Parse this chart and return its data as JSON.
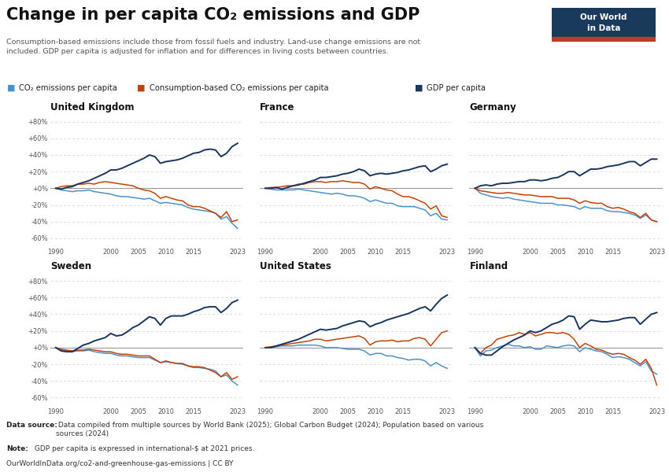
{
  "title": "Change in per capita CO₂ emissions and GDP",
  "subtitle": "Consumption-based emissions include those from fossil fuels and industry. Land-use change emissions are not\nincluded. GDP per capita is adjusted for inflation and for differences in living costs between countries.",
  "footer_datasource_bold": "Data source:",
  "footer_datasource_rest": " Data compiled from multiple sources by World Bank (2025); Global Carbon Budget (2024); Population based on various\nsources (2024)",
  "footer_note_bold": "Note:",
  "footer_note_rest": " GDP per capita is expressed in international-$ at 2021 prices.",
  "footer_url": "OurWorldInData.org/co2-and-greenhouse-gas-emissions | CC BY",
  "owid_box_color": "#1a3a5c",
  "owid_box_red": "#c0392b",
  "countries": [
    "United Kingdom",
    "France",
    "Germany",
    "Sweden",
    "United States",
    "Finland"
  ],
  "years": [
    1990,
    1991,
    1992,
    1993,
    1994,
    1995,
    1996,
    1997,
    1998,
    1999,
    2000,
    2001,
    2002,
    2003,
    2004,
    2005,
    2006,
    2007,
    2008,
    2009,
    2010,
    2011,
    2012,
    2013,
    2014,
    2015,
    2016,
    2017,
    2018,
    2019,
    2020,
    2021,
    2022,
    2023
  ],
  "data": {
    "United Kingdom": {
      "co2": [
        0,
        -2,
        -3,
        -4,
        -3,
        -3,
        -2,
        -4,
        -5,
        -6,
        -7,
        -9,
        -10,
        -10,
        -11,
        -12,
        -13,
        -12,
        -15,
        -18,
        -17,
        -18,
        -19,
        -20,
        -23,
        -25,
        -26,
        -27,
        -28,
        -30,
        -37,
        -34,
        -42,
        -48
      ],
      "consumption": [
        0,
        2,
        3,
        3,
        5,
        5,
        6,
        5,
        7,
        8,
        7,
        6,
        5,
        4,
        3,
        0,
        -2,
        -3,
        -6,
        -12,
        -10,
        -12,
        -14,
        -15,
        -20,
        -22,
        -22,
        -24,
        -27,
        -30,
        -35,
        -28,
        -40,
        -38
      ],
      "gdp": [
        0,
        -1,
        1,
        2,
        5,
        7,
        9,
        12,
        15,
        18,
        22,
        22,
        24,
        27,
        30,
        33,
        36,
        40,
        38,
        30,
        32,
        33,
        34,
        36,
        39,
        42,
        43,
        46,
        47,
        46,
        38,
        42,
        50,
        54
      ]
    },
    "France": {
      "co2": [
        0,
        -1,
        -2,
        -2,
        -2,
        -2,
        -1,
        -2,
        -3,
        -4,
        -5,
        -6,
        -7,
        -6,
        -7,
        -9,
        -9,
        -10,
        -12,
        -16,
        -14,
        -16,
        -18,
        -18,
        -21,
        -22,
        -22,
        -22,
        -24,
        -26,
        -33,
        -30,
        -37,
        -38
      ],
      "consumption": [
        0,
        1,
        1,
        2,
        3,
        3,
        5,
        5,
        7,
        8,
        8,
        7,
        8,
        8,
        9,
        8,
        7,
        7,
        5,
        -1,
        2,
        0,
        -2,
        -3,
        -7,
        -10,
        -10,
        -12,
        -15,
        -18,
        -25,
        -21,
        -33,
        -35
      ],
      "gdp": [
        0,
        0,
        1,
        -1,
        1,
        3,
        4,
        6,
        8,
        10,
        13,
        13,
        14,
        15,
        17,
        18,
        20,
        23,
        21,
        15,
        17,
        18,
        17,
        18,
        19,
        21,
        22,
        24,
        26,
        27,
        20,
        23,
        27,
        29
      ]
    },
    "Germany": {
      "co2": [
        0,
        -6,
        -8,
        -10,
        -11,
        -12,
        -11,
        -13,
        -14,
        -15,
        -16,
        -17,
        -18,
        -18,
        -18,
        -20,
        -20,
        -21,
        -22,
        -25,
        -22,
        -24,
        -24,
        -24,
        -27,
        -28,
        -28,
        -29,
        -30,
        -32,
        -36,
        -32,
        -38,
        -40
      ],
      "consumption": [
        0,
        -3,
        -4,
        -5,
        -6,
        -6,
        -5,
        -6,
        -7,
        -8,
        -8,
        -9,
        -10,
        -10,
        -10,
        -12,
        -12,
        -12,
        -14,
        -18,
        -15,
        -17,
        -18,
        -18,
        -22,
        -24,
        -23,
        -25,
        -28,
        -30,
        -35,
        -30,
        -38,
        -40
      ],
      "gdp": [
        0,
        3,
        4,
        3,
        5,
        6,
        6,
        7,
        8,
        8,
        10,
        10,
        9,
        10,
        12,
        13,
        16,
        20,
        20,
        15,
        19,
        23,
        23,
        24,
        26,
        27,
        28,
        30,
        32,
        32,
        27,
        31,
        35,
        35
      ]
    },
    "Sweden": {
      "co2": [
        0,
        -3,
        -4,
        -5,
        -4,
        -4,
        -3,
        -5,
        -6,
        -7,
        -7,
        -9,
        -10,
        -10,
        -11,
        -12,
        -12,
        -12,
        -15,
        -18,
        -17,
        -18,
        -19,
        -20,
        -22,
        -24,
        -24,
        -25,
        -26,
        -28,
        -35,
        -33,
        -40,
        -45
      ],
      "consumption": [
        0,
        -2,
        -3,
        -4,
        -3,
        -3,
        -2,
        -3,
        -4,
        -5,
        -5,
        -7,
        -8,
        -8,
        -9,
        -10,
        -10,
        -10,
        -14,
        -18,
        -16,
        -18,
        -19,
        -19,
        -22,
        -23,
        -23,
        -24,
        -27,
        -30,
        -35,
        -30,
        -38,
        -35
      ],
      "gdp": [
        0,
        -4,
        -5,
        -5,
        -1,
        3,
        5,
        8,
        10,
        12,
        17,
        14,
        15,
        19,
        24,
        27,
        32,
        37,
        35,
        27,
        35,
        38,
        38,
        38,
        40,
        43,
        45,
        48,
        49,
        49,
        42,
        47,
        54,
        57
      ]
    },
    "United States": {
      "co2": [
        0,
        0,
        1,
        2,
        2,
        2,
        3,
        3,
        3,
        3,
        2,
        0,
        0,
        0,
        -1,
        -2,
        -2,
        -2,
        -4,
        -9,
        -7,
        -7,
        -10,
        -10,
        -12,
        -13,
        -15,
        -14,
        -14,
        -16,
        -22,
        -18,
        -22,
        -25
      ],
      "consumption": [
        0,
        1,
        2,
        3,
        4,
        5,
        6,
        7,
        8,
        10,
        10,
        8,
        9,
        10,
        11,
        12,
        13,
        14,
        11,
        3,
        7,
        8,
        8,
        9,
        7,
        8,
        8,
        11,
        12,
        10,
        2,
        10,
        18,
        20
      ],
      "gdp": [
        0,
        0,
        2,
        4,
        6,
        8,
        10,
        13,
        16,
        19,
        22,
        21,
        22,
        23,
        26,
        28,
        30,
        32,
        31,
        25,
        28,
        30,
        33,
        35,
        37,
        39,
        41,
        44,
        47,
        49,
        44,
        52,
        59,
        63
      ]
    },
    "Finland": {
      "co2": [
        0,
        -10,
        -4,
        -3,
        0,
        2,
        4,
        2,
        2,
        0,
        1,
        -2,
        -2,
        2,
        1,
        0,
        2,
        3,
        2,
        -5,
        0,
        -2,
        -4,
        -5,
        -8,
        -12,
        -11,
        -12,
        -14,
        -18,
        -22,
        -17,
        -28,
        -32
      ],
      "consumption": [
        0,
        -7,
        0,
        3,
        10,
        12,
        14,
        15,
        18,
        16,
        18,
        14,
        16,
        18,
        18,
        17,
        18,
        16,
        10,
        0,
        5,
        2,
        -2,
        -3,
        -6,
        -8,
        -7,
        -8,
        -12,
        -15,
        -20,
        -14,
        -25,
        -45
      ],
      "gdp": [
        0,
        -7,
        -9,
        -9,
        -4,
        1,
        5,
        9,
        12,
        15,
        20,
        18,
        20,
        24,
        28,
        30,
        33,
        38,
        37,
        22,
        28,
        33,
        32,
        31,
        31,
        32,
        33,
        35,
        36,
        36,
        28,
        34,
        40,
        42
      ]
    }
  },
  "co2_color": "#4e91c9",
  "consumption_color": "#c0430a",
  "gdp_color": "#1a3560",
  "ylim": [
    -70,
    90
  ],
  "yticks": [
    -60,
    -40,
    -20,
    0,
    20,
    40,
    60,
    80
  ],
  "ytick_labels": [
    "-60%",
    "-40%",
    "-20%",
    "+0%",
    "+20%",
    "+40%",
    "+60%",
    "+80%"
  ],
  "xticks": [
    1990,
    2000,
    2005,
    2010,
    2015,
    2023
  ],
  "background_color": "#ffffff",
  "grid_color": "#cccccc",
  "zero_line_color": "#999999"
}
